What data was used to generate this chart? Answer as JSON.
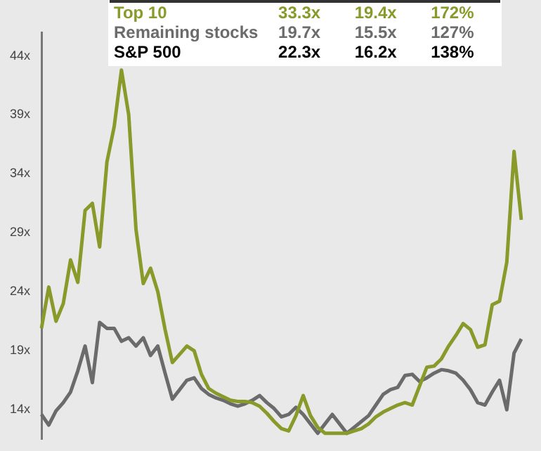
{
  "chart_data": {
    "type": "line",
    "categories": [
      null,
      null,
      null,
      null,
      null,
      null,
      null,
      null,
      null,
      null,
      null,
      null,
      null,
      null,
      null,
      null,
      null,
      null,
      null,
      null,
      null,
      null,
      null,
      null,
      null,
      null,
      null,
      null,
      null,
      null,
      null,
      null,
      null,
      null,
      null,
      null,
      null,
      null,
      null,
      null,
      null,
      null,
      null,
      null,
      null,
      null,
      null,
      null,
      null,
      null,
      null,
      null,
      null,
      null,
      null,
      null,
      null,
      null,
      null,
      null,
      null,
      null,
      null,
      null,
      null,
      null,
      null
    ],
    "series": [
      {
        "name": "Top 10",
        "color": "#8a9a2a",
        "values": [
          20.9,
          24.4,
          21.5,
          23,
          26.7,
          24.8,
          30.9,
          31.5,
          27.8,
          35,
          38,
          42.8,
          39,
          29.3,
          24.7,
          26,
          24,
          20.8,
          18,
          18.7,
          19.4,
          19,
          17,
          15.8,
          15.4,
          15.1,
          14.8,
          14.7,
          14.7,
          14.6,
          14.3,
          13.7,
          13,
          12.4,
          12.2,
          13.5,
          15.2,
          13.5,
          12.5,
          12,
          12,
          12,
          12,
          12.2,
          12.4,
          12.8,
          13.4,
          13.8,
          14.1,
          14.4,
          14.6,
          14.4,
          16,
          17.6,
          17.7,
          18.3,
          19.4,
          20.3,
          21.3,
          20.8,
          19.3,
          19.5,
          22.9,
          23.2,
          26.5,
          35.9,
          30.1
        ]
      },
      {
        "name": "Remaining stocks",
        "color": "#6b6b6b",
        "values": [
          13.6,
          12.7,
          13.9,
          14.6,
          15.5,
          17.3,
          19.4,
          16.3,
          21.4,
          20.9,
          20.9,
          19.8,
          20.1,
          19.4,
          20.1,
          18.6,
          19.4,
          17.1,
          14.9,
          15.7,
          16.5,
          16.7,
          15.8,
          15.3,
          15,
          14.8,
          14.5,
          14.3,
          14.5,
          14.8,
          15.2,
          14.6,
          14.1,
          13.4,
          13.6,
          14.2,
          13.6,
          12.8,
          12,
          12.8,
          13.6,
          12.8,
          12,
          12.5,
          13,
          13.5,
          14.4,
          15.3,
          15.7,
          15.9,
          16.9,
          17,
          16.4,
          16.7,
          17.1,
          17.4,
          17.3,
          17.1,
          16.5,
          15.7,
          14.6,
          14.4,
          15.5,
          16.5,
          14,
          18.8,
          20
        ]
      }
    ],
    "ylim": [
      11.5,
      46
    ],
    "yticks": [
      {
        "value": 14,
        "label": "14x"
      },
      {
        "value": 19,
        "label": "19x"
      },
      {
        "value": 24,
        "label": "24x"
      },
      {
        "value": 29,
        "label": "29x"
      },
      {
        "value": 34,
        "label": "34x"
      },
      {
        "value": 39,
        "label": "39x"
      },
      {
        "value": 44,
        "label": "44x"
      }
    ],
    "tick_labels": "y",
    "grid": false,
    "legend": false,
    "marker": "none",
    "line_style": "solid",
    "annotations": [
      "33.3x",
      "19.4x",
      "172%",
      "19.7x",
      "15.5x",
      "127%",
      "S&P 500",
      "22.3x",
      "16.2x",
      "138%"
    ]
  }
}
